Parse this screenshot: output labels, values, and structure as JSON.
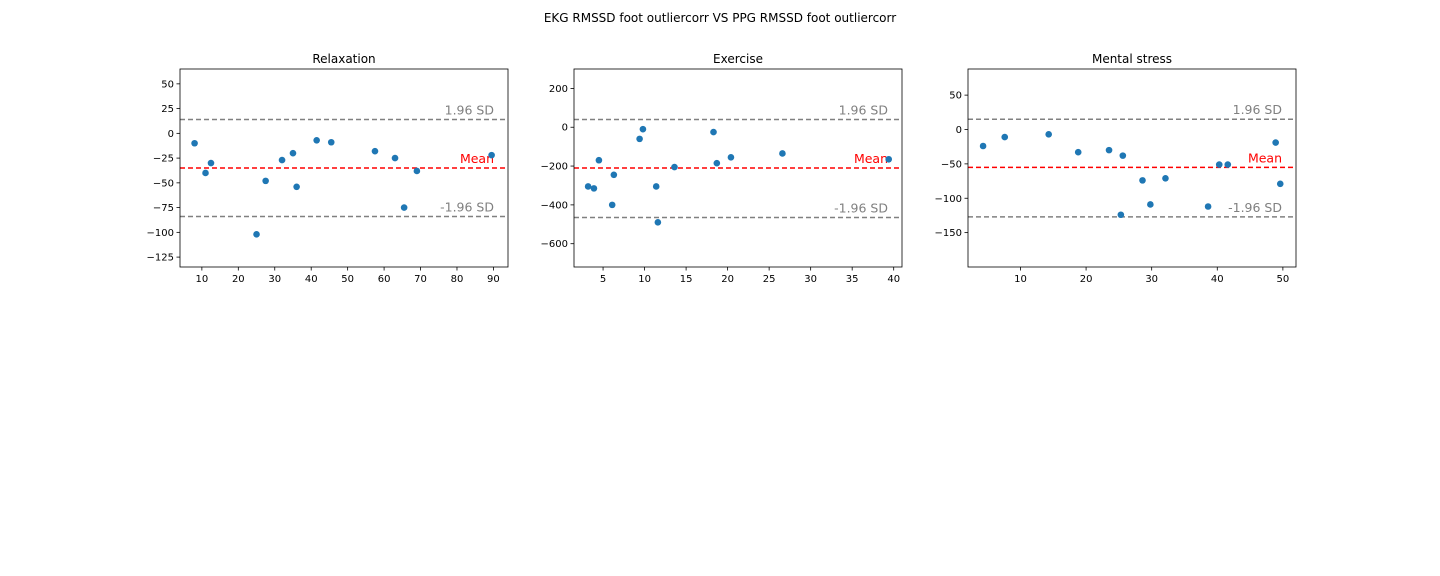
{
  "figure": {
    "suptitle": "EKG RMSSD foot outliercorr VS PPG RMSSD foot outliercorr"
  },
  "colors": {
    "points": "#1f77b4",
    "mean_line": "#ff0000",
    "sd_line": "#808080",
    "axes": "#000000"
  },
  "chart_data": [
    {
      "type": "scatter",
      "title": "Relaxation",
      "xlim": [
        4,
        94
      ],
      "ylim": [
        -135,
        65
      ],
      "xticks": [
        10,
        20,
        30,
        40,
        50,
        60,
        70,
        80,
        90
      ],
      "yticks": [
        50,
        25,
        0,
        -25,
        -50,
        -75,
        -100,
        -125
      ],
      "points": [
        [
          8,
          -10
        ],
        [
          11,
          -40
        ],
        [
          12.5,
          -30
        ],
        [
          25,
          -102
        ],
        [
          27.5,
          -48
        ],
        [
          32,
          -27
        ],
        [
          35,
          -20
        ],
        [
          36,
          -54
        ],
        [
          41.5,
          -7
        ],
        [
          45.5,
          -9
        ],
        [
          57.5,
          -18
        ],
        [
          63,
          -25
        ],
        [
          65.5,
          -75
        ],
        [
          69,
          -38
        ],
        [
          89.5,
          -22
        ]
      ],
      "mean": -35,
      "upper_sd": 14,
      "lower_sd": -84,
      "labels": {
        "upper": "1.96 SD",
        "mean": "Mean",
        "lower": "-1.96 SD"
      }
    },
    {
      "type": "scatter",
      "title": "Exercise",
      "xlim": [
        1.5,
        41
      ],
      "ylim": [
        -720,
        300
      ],
      "xticks": [
        5,
        10,
        15,
        20,
        25,
        30,
        35,
        40
      ],
      "yticks": [
        200,
        0,
        -200,
        -400,
        -600
      ],
      "points": [
        [
          3.2,
          -305
        ],
        [
          3.9,
          -315
        ],
        [
          4.5,
          -170
        ],
        [
          6.1,
          -400
        ],
        [
          6.3,
          -245
        ],
        [
          9.4,
          -60
        ],
        [
          9.8,
          -10
        ],
        [
          11.4,
          -305
        ],
        [
          11.6,
          -490
        ],
        [
          13.6,
          -205
        ],
        [
          18.3,
          -25
        ],
        [
          18.7,
          -185
        ],
        [
          20.4,
          -155
        ],
        [
          26.6,
          -135
        ],
        [
          39.4,
          -165
        ]
      ],
      "mean": -210,
      "upper_sd": 40,
      "lower_sd": -465,
      "labels": {
        "upper": "1.96 SD",
        "mean": "Mean",
        "lower": "-1.96 SD"
      }
    },
    {
      "type": "scatter",
      "title": "Mental stress",
      "xlim": [
        2,
        52
      ],
      "ylim": [
        -200,
        88
      ],
      "xticks": [
        10,
        20,
        30,
        40,
        50
      ],
      "yticks": [
        50,
        0,
        -50,
        -100,
        -150
      ],
      "points": [
        [
          4.3,
          -24
        ],
        [
          7.6,
          -11
        ],
        [
          14.3,
          -7
        ],
        [
          18.8,
          -33
        ],
        [
          23.5,
          -30
        ],
        [
          25.3,
          -124
        ],
        [
          25.6,
          -38
        ],
        [
          28.6,
          -74
        ],
        [
          29.8,
          -109
        ],
        [
          32.1,
          -71
        ],
        [
          38.6,
          -112
        ],
        [
          40.3,
          -51
        ],
        [
          41.6,
          -51
        ],
        [
          48.9,
          -19
        ],
        [
          49.6,
          -79
        ]
      ],
      "mean": -55,
      "upper_sd": 15,
      "lower_sd": -127,
      "labels": {
        "upper": "1.96 SD",
        "mean": "Mean",
        "lower": "-1.96 SD"
      }
    }
  ]
}
